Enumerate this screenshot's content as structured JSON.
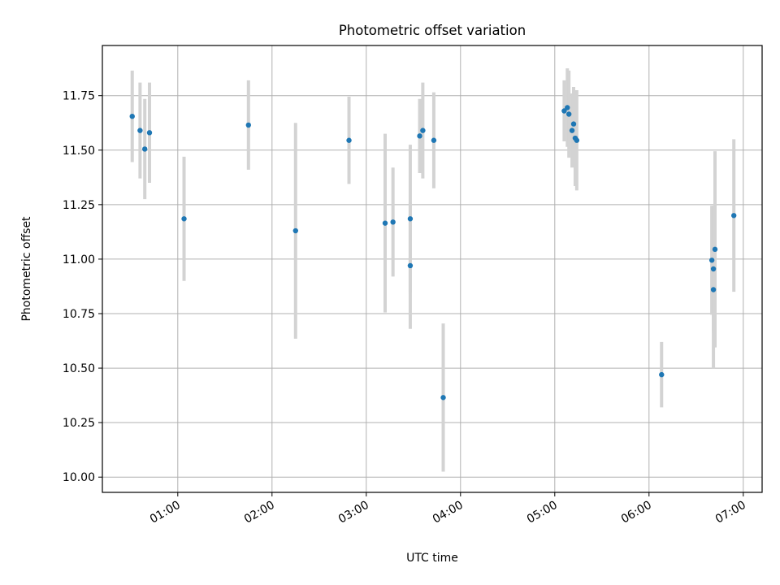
{
  "chart_data": {
    "type": "scatter",
    "title": "Photometric offset variation",
    "xlabel": "UTC time",
    "ylabel": "Photometric offset",
    "x_unit": "UTC hh:mm",
    "xlim": [
      "00:12",
      "07:12"
    ],
    "ylim": [
      9.93,
      11.98
    ],
    "x_ticks": [
      "01:00",
      "02:00",
      "03:00",
      "04:00",
      "05:00",
      "06:00",
      "07:00"
    ],
    "y_ticks": [
      "10.00",
      "10.25",
      "10.50",
      "10.75",
      "11.00",
      "11.25",
      "11.50",
      "11.75"
    ],
    "grid": true,
    "errorbar_color": "#d3d3d3",
    "point_color": "#1f77b4",
    "points": [
      {
        "x": "00:31",
        "y": 11.655,
        "yerr": 0.21
      },
      {
        "x": "00:36",
        "y": 11.59,
        "yerr": 0.22
      },
      {
        "x": "00:39",
        "y": 11.505,
        "yerr": 0.23
      },
      {
        "x": "00:42",
        "y": 11.58,
        "yerr": 0.23
      },
      {
        "x": "01:04",
        "y": 11.185,
        "yerr": 0.285
      },
      {
        "x": "01:45",
        "y": 11.615,
        "yerr": 0.205
      },
      {
        "x": "02:15",
        "y": 11.13,
        "yerr": 0.495
      },
      {
        "x": "02:49",
        "y": 11.545,
        "yerr": 0.2
      },
      {
        "x": "03:12",
        "y": 11.165,
        "yerr": 0.41
      },
      {
        "x": "03:17",
        "y": 11.17,
        "yerr": 0.25
      },
      {
        "x": "03:28",
        "y": 11.185,
        "yerr": 0.34
      },
      {
        "x": "03:28",
        "y": 10.97,
        "yerr": 0.29
      },
      {
        "x": "03:34",
        "y": 11.565,
        "yerr": 0.17
      },
      {
        "x": "03:36",
        "y": 11.59,
        "yerr": 0.22
      },
      {
        "x": "03:43",
        "y": 11.545,
        "yerr": 0.22
      },
      {
        "x": "03:49",
        "y": 10.365,
        "yerr": 0.34
      },
      {
        "x": "05:06",
        "y": 11.68,
        "yerr": 0.14
      },
      {
        "x": "05:08",
        "y": 11.695,
        "yerr": 0.18
      },
      {
        "x": "05:09",
        "y": 11.665,
        "yerr": 0.2
      },
      {
        "x": "05:11",
        "y": 11.59,
        "yerr": 0.17
      },
      {
        "x": "05:12",
        "y": 11.62,
        "yerr": 0.17
      },
      {
        "x": "05:13",
        "y": 11.555,
        "yerr": 0.22
      },
      {
        "x": "05:14",
        "y": 11.545,
        "yerr": 0.23
      },
      {
        "x": "06:08",
        "y": 10.47,
        "yerr": 0.15
      },
      {
        "x": "06:40",
        "y": 10.995,
        "yerr": 0.25
      },
      {
        "x": "06:41",
        "y": 10.955,
        "yerr": 0.29
      },
      {
        "x": "06:41",
        "y": 10.86,
        "yerr": 0.36
      },
      {
        "x": "06:42",
        "y": 11.045,
        "yerr": 0.45
      },
      {
        "x": "06:54",
        "y": 11.2,
        "yerr": 0.35
      }
    ]
  }
}
